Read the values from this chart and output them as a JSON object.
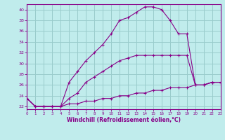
{
  "xlabel": "Windchill (Refroidissement éolien,°C)",
  "bg_color": "#c0ecec",
  "line_color": "#880088",
  "grid_color": "#99cccc",
  "xlim": [
    0,
    23
  ],
  "ylim": [
    21.5,
    41.0
  ],
  "xticks": [
    0,
    1,
    2,
    3,
    4,
    5,
    6,
    7,
    8,
    9,
    10,
    11,
    12,
    13,
    14,
    15,
    16,
    17,
    18,
    19,
    20,
    21,
    22,
    23
  ],
  "yticks": [
    22,
    24,
    26,
    28,
    30,
    32,
    34,
    36,
    38,
    40
  ],
  "line1_x": [
    0,
    1,
    2,
    3,
    4,
    5,
    6,
    7,
    8,
    9,
    10,
    11,
    12,
    13,
    14,
    15,
    16,
    17,
    18,
    19,
    20,
    21,
    22,
    23
  ],
  "line1_y": [
    23.5,
    22.0,
    22.0,
    22.0,
    22.0,
    22.5,
    22.5,
    23.0,
    23.0,
    23.5,
    23.5,
    24.0,
    24.0,
    24.5,
    24.5,
    25.0,
    25.0,
    25.5,
    25.5,
    25.5,
    26.0,
    26.0,
    26.5,
    26.5
  ],
  "line2_x": [
    0,
    1,
    2,
    3,
    4,
    5,
    6,
    7,
    8,
    9,
    10,
    11,
    12,
    13,
    14,
    15,
    16,
    17,
    18,
    19,
    20,
    21,
    22,
    23
  ],
  "line2_y": [
    23.5,
    22.0,
    22.0,
    22.0,
    22.0,
    23.5,
    24.5,
    26.5,
    27.5,
    28.5,
    29.5,
    30.5,
    31.0,
    31.5,
    31.5,
    31.5,
    31.5,
    31.5,
    31.5,
    31.5,
    26.0,
    26.0,
    26.5,
    26.5
  ],
  "line3_x": [
    0,
    1,
    2,
    3,
    4,
    5,
    6,
    7,
    8,
    9,
    10,
    11,
    12,
    13,
    14,
    15,
    16,
    17,
    18,
    19,
    20,
    21,
    22,
    23
  ],
  "line3_y": [
    23.5,
    22.0,
    22.0,
    22.0,
    22.0,
    26.5,
    28.5,
    30.5,
    32.0,
    33.5,
    35.5,
    38.0,
    38.5,
    39.5,
    40.5,
    40.5,
    40.0,
    38.0,
    35.5,
    35.5,
    26.0,
    26.0,
    26.5,
    26.5
  ]
}
